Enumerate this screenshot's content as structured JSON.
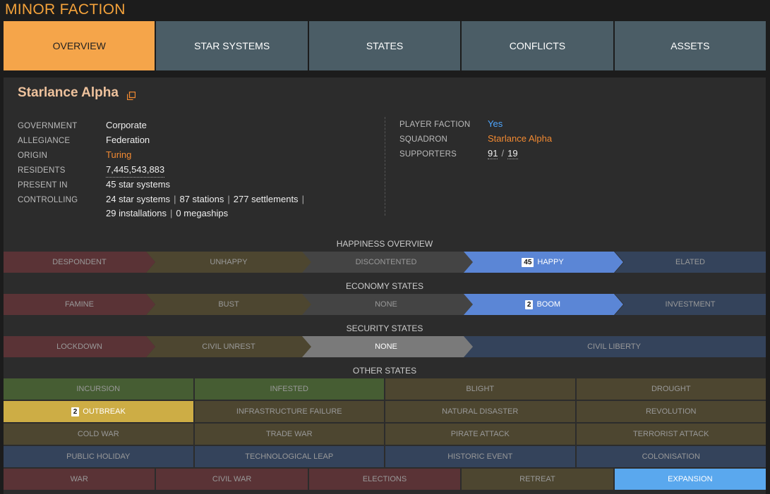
{
  "app_title": "MINOR FACTION",
  "tabs": [
    "OVERVIEW",
    "STAR SYSTEMS",
    "STATES",
    "CONFLICTS",
    "ASSETS"
  ],
  "faction": {
    "name": "Starlance Alpha",
    "government_label": "GOVERNMENT",
    "government": "Corporate",
    "allegiance_label": "ALLEGIANCE",
    "allegiance": "Federation",
    "origin_label": "ORIGIN",
    "origin": "Turing",
    "residents_label": "RESIDENTS",
    "residents": "7,445,543,883",
    "present_in_label": "PRESENT IN",
    "present_in_num": "45",
    "present_in_text": "star systems",
    "controlling_label": "CONTROLLING",
    "controlling": {
      "star_systems_num": "24",
      "star_systems": "star systems",
      "stations_num": "87",
      "stations": "stations",
      "settlements_num": "277",
      "settlements": "settlements",
      "installations_num": "29",
      "installations": "installations",
      "megaships_num": "0",
      "megaships": "megaships"
    },
    "player_faction_label": "PLAYER FACTION",
    "player_faction": "Yes",
    "squadron_label": "SQUADRON",
    "squadron": "Starlance Alpha",
    "supporters_label": "SUPPORTERS",
    "supporters_a": "91",
    "supporters_sep": "/",
    "supporters_b": "19"
  },
  "happiness": {
    "title": "HAPPINESS OVERVIEW",
    "items": [
      {
        "label": "DESPONDENT",
        "color": "#5a3336"
      },
      {
        "label": "UNHAPPY",
        "color": "#4d4630"
      },
      {
        "label": "DISCONTENTED",
        "color": "#444444"
      },
      {
        "label": "HAPPY",
        "color": "#5b86d6",
        "badge": "45",
        "active": true
      },
      {
        "label": "ELATED",
        "color": "#34435b"
      }
    ]
  },
  "economy": {
    "title": "ECONOMY STATES",
    "items": [
      {
        "label": "FAMINE",
        "color": "#5a3336"
      },
      {
        "label": "BUST",
        "color": "#4d4630"
      },
      {
        "label": "NONE",
        "color": "#444444"
      },
      {
        "label": "BOOM",
        "color": "#5b86d6",
        "badge": "2",
        "active": true
      },
      {
        "label": "INVESTMENT",
        "color": "#34435b"
      }
    ]
  },
  "security": {
    "title": "SECURITY STATES",
    "items": [
      {
        "label": "LOCKDOWN",
        "color": "#5a3336"
      },
      {
        "label": "CIVIL UNREST",
        "color": "#4d4630"
      },
      {
        "label": "NONE",
        "color": "#7a7a7a",
        "active": true
      },
      {
        "label": "CIVIL LIBERTY",
        "color": "#34435b"
      }
    ]
  },
  "other": {
    "title": "OTHER STATES",
    "rows": [
      [
        {
          "label": "INCURSION",
          "cls": "g-green"
        },
        {
          "label": "INFESTED",
          "cls": "g-green"
        },
        {
          "label": "BLIGHT",
          "cls": "g-olive"
        },
        {
          "label": "DROUGHT",
          "cls": "g-olive"
        }
      ],
      [
        {
          "label": "OUTBREAK",
          "cls": "g-yellow",
          "badge": "2"
        },
        {
          "label": "INFRASTRUCTURE FAILURE",
          "cls": "g-olive"
        },
        {
          "label": "NATURAL DISASTER",
          "cls": "g-olive"
        },
        {
          "label": "REVOLUTION",
          "cls": "g-olive"
        }
      ],
      [
        {
          "label": "COLD WAR",
          "cls": "g-olive"
        },
        {
          "label": "TRADE WAR",
          "cls": "g-olive"
        },
        {
          "label": "PIRATE ATTACK",
          "cls": "g-olive"
        },
        {
          "label": "TERRORIST ATTACK",
          "cls": "g-olive"
        }
      ],
      [
        {
          "label": "PUBLIC HOLIDAY",
          "cls": "g-blue"
        },
        {
          "label": "TECHNOLOGICAL LEAP",
          "cls": "g-blue"
        },
        {
          "label": "HISTORIC EVENT",
          "cls": "g-blue"
        },
        {
          "label": "COLONISATION",
          "cls": "g-blue"
        }
      ],
      [
        {
          "label": "WAR",
          "cls": "g-red"
        },
        {
          "label": "CIVIL WAR",
          "cls": "g-red"
        },
        {
          "label": "ELECTIONS",
          "cls": "g-red"
        },
        {
          "label": "RETREAT",
          "cls": "g-olive"
        },
        {
          "label": "EXPANSION",
          "cls": "g-sky"
        }
      ]
    ]
  }
}
